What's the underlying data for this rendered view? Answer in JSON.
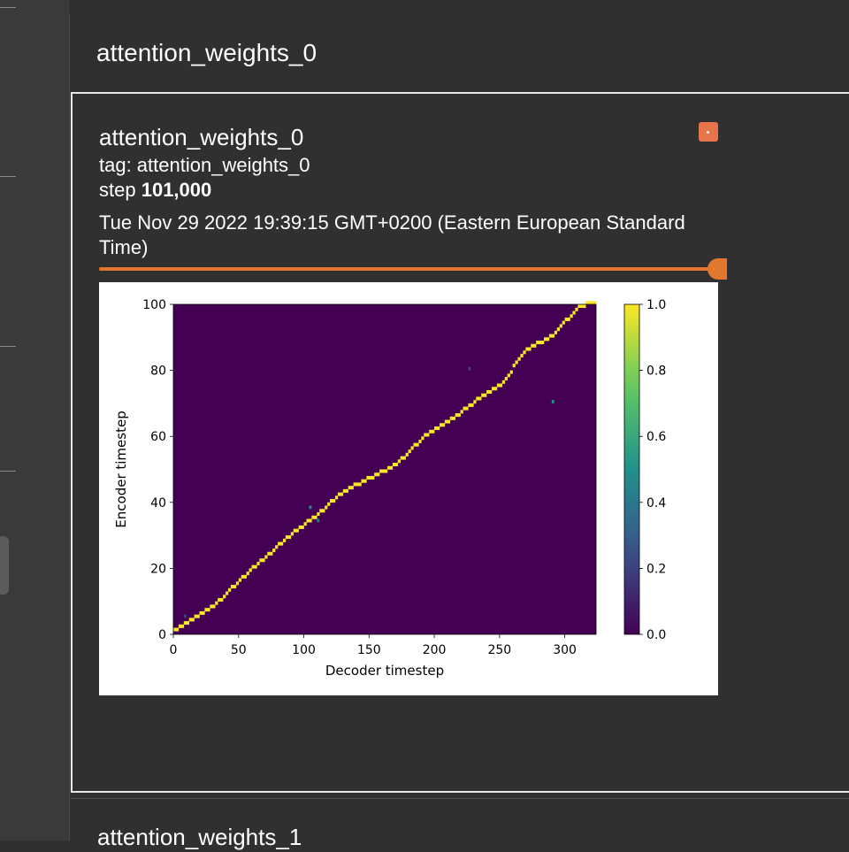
{
  "group": {
    "title": "attention_weights_0"
  },
  "card": {
    "title": "attention_weights_0",
    "tag_label": "tag: attention_weights_0",
    "step_label": "step",
    "step_value": "101,000",
    "timestamp": "Tue Nov 29 2022 19:39:15 GMT+0200 (Eastern European Standard Time)",
    "step_slider_fraction": 1.0
  },
  "next_card": {
    "title": "attention_weights_1"
  },
  "colors": {
    "background": "#303030",
    "accent": "#e3772e",
    "expand_button": "#e8744a",
    "heatmap_low": "#440154",
    "heatmap_high": "#fde725"
  },
  "chart_data": {
    "type": "heatmap",
    "xlabel": "Decoder timestep",
    "ylabel": "Encoder timestep",
    "xlim": [
      0,
      324
    ],
    "ylim": [
      0,
      100
    ],
    "xticks": [
      0,
      50,
      100,
      150,
      200,
      250,
      300
    ],
    "yticks": [
      0,
      20,
      40,
      60,
      80,
      100
    ],
    "colorbar": {
      "min": 0.0,
      "max": 1.0,
      "ticks": [
        "0.0",
        "0.2",
        "0.4",
        "0.6",
        "0.8",
        "1.0"
      ]
    },
    "colormap": "viridis",
    "alignment_path": [
      [
        0,
        1
      ],
      [
        10,
        3
      ],
      [
        30,
        8
      ],
      [
        50,
        16
      ],
      [
        70,
        23
      ],
      [
        90,
        30
      ],
      [
        110,
        36
      ],
      [
        130,
        43
      ],
      [
        150,
        47
      ],
      [
        170,
        51
      ],
      [
        190,
        59
      ],
      [
        210,
        64
      ],
      [
        230,
        70
      ],
      [
        250,
        75
      ],
      [
        270,
        86
      ],
      [
        290,
        90
      ],
      [
        310,
        99
      ],
      [
        322,
        100
      ]
    ],
    "off_path_spots": [
      [
        104,
        38,
        0.5
      ],
      [
        110,
        34,
        0.4
      ],
      [
        290,
        70,
        0.5
      ],
      [
        8,
        5,
        0.2
      ],
      [
        226,
        80,
        0.2
      ]
    ]
  }
}
